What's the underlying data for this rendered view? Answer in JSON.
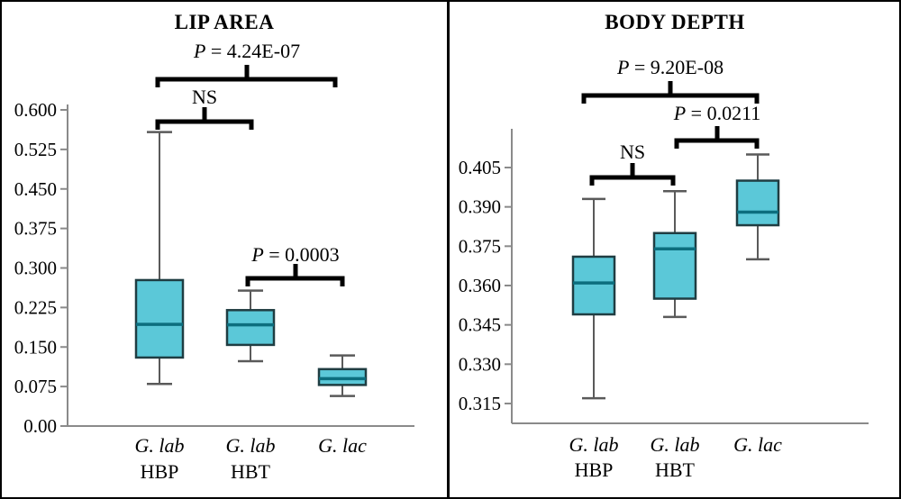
{
  "figure": {
    "background": "#ffffff",
    "border_color": "#000000"
  },
  "colors": {
    "box_fill": "#5bc8d8",
    "box_border": "#1f3d42",
    "median_line": "#0c6e7e",
    "whisker": "#5a5a5a",
    "axis": "#8a8a8a",
    "bracket": "#000000",
    "text": "#000000"
  },
  "chart_data": [
    {
      "type": "box",
      "title": "LIP AREA",
      "xlabel": "",
      "ylabel": "",
      "ylim": [
        0,
        0.6
      ],
      "grid": false,
      "yticks": [
        {
          "value": 0.6,
          "label": "0.600"
        },
        {
          "value": 0.525,
          "label": "0.525"
        },
        {
          "value": 0.45,
          "label": "0.450"
        },
        {
          "value": 0.375,
          "label": "0.375"
        },
        {
          "value": 0.3,
          "label": "0.300"
        },
        {
          "value": 0.225,
          "label": "0.225"
        },
        {
          "value": 0.15,
          "label": "0.150"
        },
        {
          "value": 0.075,
          "label": "0.075"
        },
        {
          "value": 0.0,
          "label": "0.00"
        }
      ],
      "categories": [
        {
          "line1": "G. lab",
          "line2": "HBP"
        },
        {
          "line1": "G. lab",
          "line2": "HBT"
        },
        {
          "line1": "G. lac",
          "line2": ""
        }
      ],
      "boxes": [
        {
          "whisker_low": 0.08,
          "q1": 0.13,
          "median": 0.193,
          "q3": 0.277,
          "whisker_high": 0.558
        },
        {
          "whisker_low": 0.123,
          "q1": 0.154,
          "median": 0.192,
          "q3": 0.22,
          "whisker_high": 0.257
        },
        {
          "whisker_low": 0.057,
          "q1": 0.078,
          "median": 0.09,
          "q3": 0.108,
          "whisker_high": 0.134
        }
      ],
      "comparisons": [
        {
          "label": "P = 4.24E-07",
          "between": [
            0,
            2
          ]
        },
        {
          "label": "NS",
          "between": [
            0,
            1
          ]
        },
        {
          "label": "P = 0.0003",
          "between": [
            1,
            2
          ]
        }
      ]
    },
    {
      "type": "box",
      "title": "BODY DEPTH",
      "xlabel": "",
      "ylabel": "",
      "ylim": [
        0.315,
        0.405
      ],
      "grid": false,
      "yticks": [
        {
          "value": 0.405,
          "label": "0.405"
        },
        {
          "value": 0.39,
          "label": "0.390"
        },
        {
          "value": 0.375,
          "label": "0.375"
        },
        {
          "value": 0.36,
          "label": "0.360"
        },
        {
          "value": 0.345,
          "label": "0.345"
        },
        {
          "value": 0.33,
          "label": "0.330"
        },
        {
          "value": 0.315,
          "label": "0.315"
        }
      ],
      "categories": [
        {
          "line1": "G. lab",
          "line2": "HBP"
        },
        {
          "line1": "G. lab",
          "line2": "HBT"
        },
        {
          "line1": "G. lac",
          "line2": ""
        }
      ],
      "boxes": [
        {
          "whisker_low": 0.317,
          "q1": 0.349,
          "median": 0.361,
          "q3": 0.371,
          "whisker_high": 0.393
        },
        {
          "whisker_low": 0.348,
          "q1": 0.355,
          "median": 0.374,
          "q3": 0.38,
          "whisker_high": 0.396
        },
        {
          "whisker_low": 0.37,
          "q1": 0.383,
          "median": 0.388,
          "q3": 0.4,
          "whisker_high": 0.41
        }
      ],
      "comparisons": [
        {
          "label": "P = 9.20E-08",
          "between": [
            0,
            2
          ]
        },
        {
          "label": "P = 0.0211",
          "between": [
            1,
            2
          ]
        },
        {
          "label": "NS",
          "between": [
            0,
            1
          ]
        }
      ]
    }
  ]
}
